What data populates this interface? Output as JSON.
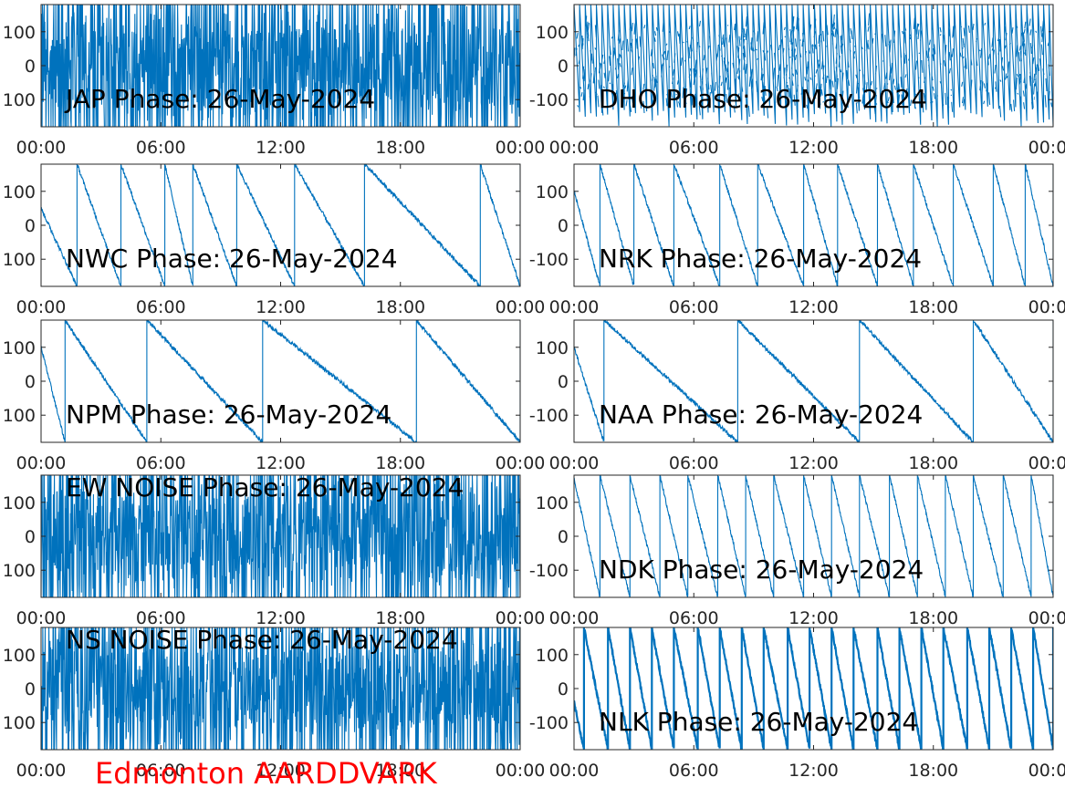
{
  "footer_label": "Edmonton AARDDVARK",
  "colors": {
    "series": "#0072bd",
    "axis": "#262626",
    "footer": "#ff0000",
    "background": "#ffffff"
  },
  "chart_data": [
    {
      "type": "line",
      "title": "JAP Phase: 26-May-2024",
      "xlabel": "",
      "ylabel": "",
      "x_ticks": [
        "00:00",
        "06:00",
        "12:00",
        "18:00",
        "00:00"
      ],
      "y_ticks": [
        "100",
        "0",
        "100"
      ],
      "xlim": [
        0,
        24
      ],
      "ylim": [
        -180,
        180
      ],
      "grid": false,
      "pattern": "noise",
      "description_values": {
        "period_hours": 0,
        "wrap": true
      }
    },
    {
      "type": "line",
      "title": "DHO Phase: 26-May-2024",
      "xlabel": "",
      "ylabel": "",
      "x_ticks": [
        "00:00",
        "06:00",
        "12:00",
        "18:00",
        "00:00"
      ],
      "y_ticks": [
        "100",
        "0",
        "-100"
      ],
      "xlim": [
        0,
        24
      ],
      "ylim": [
        -180,
        180
      ],
      "grid": false,
      "pattern": "fast-sawtooth",
      "description_values": {
        "period_hours": 0.28,
        "wrap": true
      }
    },
    {
      "type": "line",
      "title": "NWC Phase: 26-May-2024",
      "xlabel": "",
      "ylabel": "",
      "x_ticks": [
        "00:00",
        "06:00",
        "12:00",
        "18:00",
        "00:00"
      ],
      "y_ticks": [
        "100",
        "0",
        "100"
      ],
      "xlim": [
        0,
        24
      ],
      "ylim": [
        -180,
        180
      ],
      "grid": false,
      "pattern": "sawtooth",
      "wrap_hours": [
        1.8,
        4.0,
        6.2,
        7.6,
        9.8,
        12.7,
        16.2,
        22.0,
        24.0
      ],
      "start_value": 50
    },
    {
      "type": "line",
      "title": "NRK Phase: 26-May-2024",
      "xlabel": "",
      "ylabel": "",
      "x_ticks": [
        "00:00",
        "06:00",
        "12:00",
        "18:00",
        "00:00"
      ],
      "y_ticks": [
        "100",
        "0",
        "-100"
      ],
      "xlim": [
        0,
        24
      ],
      "ylim": [
        -180,
        180
      ],
      "grid": false,
      "pattern": "sawtooth",
      "wrap_hours": [
        1.3,
        3.0,
        5.0,
        7.3,
        9.2,
        11.5,
        13.2,
        15.2,
        17.0,
        19.0,
        21.0,
        22.6,
        24.0
      ],
      "start_value": 100
    },
    {
      "type": "line",
      "title": "NPM Phase: 26-May-2024",
      "xlabel": "",
      "ylabel": "",
      "x_ticks": [
        "00:00",
        "06:00",
        "12:00",
        "18:00",
        "00:00"
      ],
      "y_ticks": [
        "100",
        "0",
        "100"
      ],
      "xlim": [
        0,
        24
      ],
      "ylim": [
        -180,
        180
      ],
      "grid": false,
      "pattern": "sawtooth",
      "wrap_hours": [
        1.2,
        5.3,
        11.1,
        18.8,
        24.0
      ],
      "start_value": 100
    },
    {
      "type": "line",
      "title": "NAA Phase: 26-May-2024",
      "xlabel": "",
      "ylabel": "",
      "x_ticks": [
        "00:00",
        "06:00",
        "12:00",
        "18:00",
        "00:00"
      ],
      "y_ticks": [
        "100",
        "0",
        "-100"
      ],
      "xlim": [
        0,
        24
      ],
      "ylim": [
        -180,
        180
      ],
      "grid": false,
      "pattern": "sawtooth",
      "wrap_hours": [
        1.5,
        8.2,
        14.3,
        20.0,
        24.0
      ],
      "start_value": 100
    },
    {
      "type": "line",
      "title": "EW NOISE Phase: 26-May-2024",
      "xlabel": "",
      "ylabel": "",
      "x_ticks": [
        "00:00",
        "06:00",
        "12:00",
        "18:00",
        "00:00"
      ],
      "y_ticks": [
        "100",
        "0",
        "100"
      ],
      "xlim": [
        0,
        24
      ],
      "ylim": [
        -180,
        180
      ],
      "grid": false,
      "pattern": "noise"
    },
    {
      "type": "line",
      "title": "NDK Phase: 26-May-2024",
      "xlabel": "",
      "ylabel": "",
      "x_ticks": [
        "00:00",
        "06:00",
        "12:00",
        "18:00",
        "00:00"
      ],
      "y_ticks": [
        "100",
        "0",
        "-100"
      ],
      "xlim": [
        0,
        24
      ],
      "ylim": [
        -180,
        180
      ],
      "grid": false,
      "pattern": "sawtooth",
      "wrap_hours": [
        1.3,
        2.8,
        4.3,
        5.7,
        7.2,
        8.6,
        10.0,
        11.5,
        12.9,
        14.3,
        15.8,
        17.2,
        18.6,
        20.0,
        21.5,
        22.9,
        24.0
      ],
      "start_value": 170
    },
    {
      "type": "line",
      "title": "NS NOISE Phase: 26-May-2024",
      "xlabel": "",
      "ylabel": "",
      "x_ticks": [
        "00:00",
        "06:00",
        "12:00",
        "18:00",
        "00:00"
      ],
      "y_ticks": [
        "100",
        "0",
        "100"
      ],
      "xlim": [
        0,
        24
      ],
      "ylim": [
        -180,
        180
      ],
      "grid": false,
      "pattern": "noise"
    },
    {
      "type": "line",
      "title": "NLK Phase: 26-May-2024",
      "xlabel": "",
      "ylabel": "",
      "x_ticks": [
        "00:00",
        "06:00",
        "12:00",
        "18:00",
        "00:00"
      ],
      "y_ticks": [
        "100",
        "0",
        "-100"
      ],
      "xlim": [
        0,
        24
      ],
      "ylim": [
        -180,
        180
      ],
      "grid": false,
      "pattern": "sawtooth",
      "wrap_hours": [
        0.5,
        1.7,
        2.8,
        3.9,
        5.0,
        6.2,
        7.3,
        8.4,
        9.5,
        10.7,
        11.8,
        12.9,
        14.0,
        15.2,
        16.3,
        17.4,
        18.5,
        19.7,
        20.8,
        21.9,
        23.0,
        24.0
      ],
      "start_value": -40,
      "thick": true
    }
  ]
}
